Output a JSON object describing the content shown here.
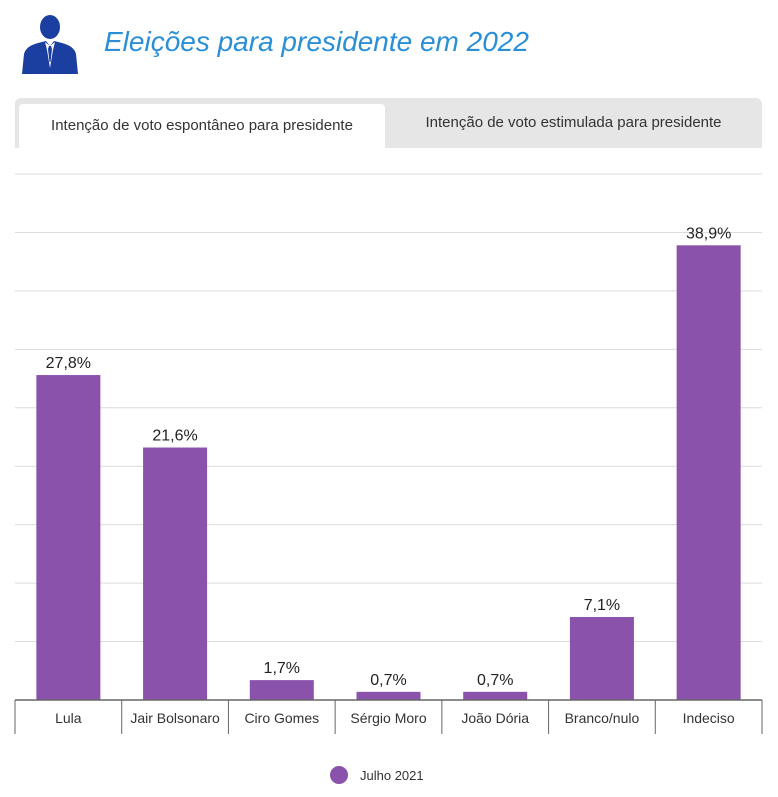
{
  "header": {
    "title": "Eleições para presidente em 2022",
    "icon": "businessman-icon"
  },
  "tabs": [
    {
      "label": "Intenção de voto espontâneo para presidente",
      "active": true
    },
    {
      "label": "Intenção de voto estimulada para presidente",
      "active": false
    }
  ],
  "colors": {
    "bar": "#8a52ab",
    "grid": "#dcdcdc",
    "axis": "#666666",
    "title": "#2b8fd6",
    "icon": "#1a3fa0"
  },
  "chart_data": {
    "type": "bar",
    "categories": [
      "Lula",
      "Jair Bolsonaro",
      "Ciro Gomes",
      "Sérgio Moro",
      "João Dória",
      "Branco/nulo",
      "Indeciso"
    ],
    "series": [
      {
        "name": "Julho 2021",
        "values": [
          27.8,
          21.6,
          1.7,
          0.7,
          0.7,
          7.1,
          38.9
        ],
        "labels": [
          "27,8%",
          "21,6%",
          "1,7%",
          "0,7%",
          "0,7%",
          "7,1%",
          "38,9%"
        ]
      }
    ],
    "ylim": [
      0,
      45
    ],
    "y_tick_step": 5,
    "y_tick_labels_visible": false,
    "grid": true,
    "legend": "bottom-center",
    "title": "",
    "xlabel": "",
    "ylabel": ""
  }
}
